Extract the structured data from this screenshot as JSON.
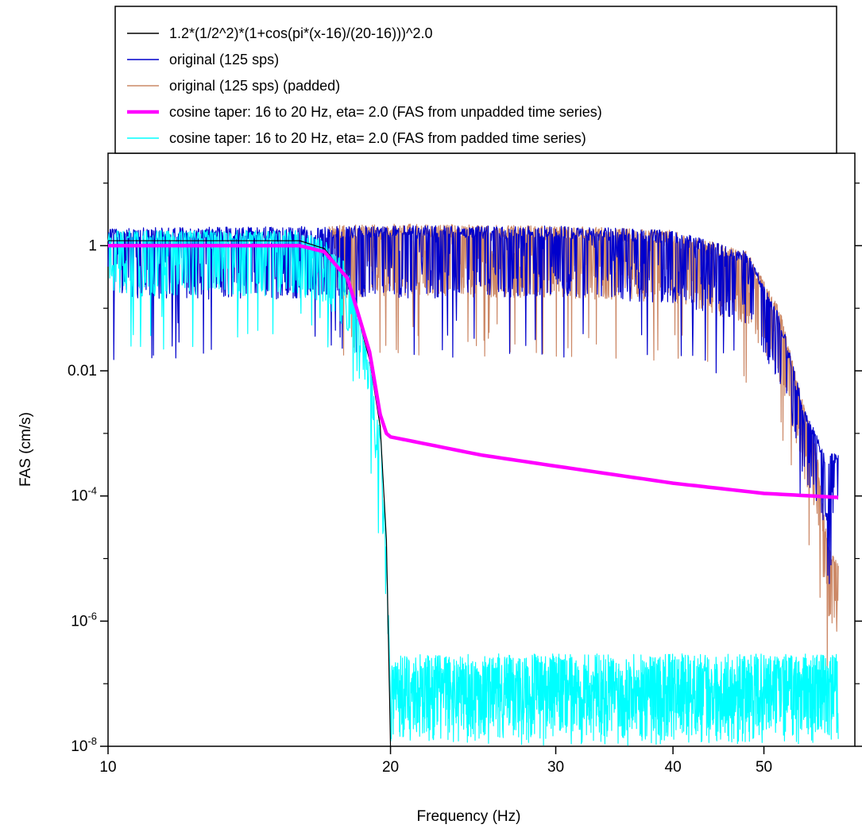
{
  "chart_data": {
    "type": "line",
    "title": "",
    "xlabel": "Frequency (Hz)",
    "ylabel": "FAS (cm/s)",
    "xscale": "log",
    "yscale": "log",
    "xlim": [
      10,
      62.5
    ],
    "ylim": [
      1e-08,
      30
    ],
    "grid": false,
    "legend_position": "top",
    "x_ticks": [
      {
        "value": 10,
        "label": "10"
      },
      {
        "value": 20,
        "label": "20"
      },
      {
        "value": 30,
        "label": "30"
      },
      {
        "value": 40,
        "label": "40"
      },
      {
        "value": 50,
        "label": "50"
      }
    ],
    "y_ticks": [
      {
        "value": 1,
        "base": "1",
        "exp": ""
      },
      {
        "value": 0.01,
        "base": "0.01",
        "exp": ""
      },
      {
        "value": 0.0001,
        "base": "10",
        "exp": "-4"
      },
      {
        "value": 1e-06,
        "base": "10",
        "exp": "-6"
      },
      {
        "value": 1e-08,
        "base": "10",
        "exp": "-8"
      }
    ],
    "series": [
      {
        "name": "1.2*(1/2^2)*(1+cos(pi*(x-16)/(20-16)))^2.0",
        "color": "#000000",
        "style": "line",
        "points": [
          [
            10,
            1.2
          ],
          [
            16,
            1.2
          ],
          [
            17,
            0.9
          ],
          [
            18,
            0.3
          ],
          [
            19,
            0.015
          ],
          [
            19.5,
            0.0013
          ],
          [
            19.8,
            2e-05
          ],
          [
            20,
            1e-08
          ]
        ]
      },
      {
        "name": "original (125 sps)",
        "color": "#0000cc",
        "style": "noisy",
        "envelope": [
          [
            10,
            1.2
          ],
          [
            20,
            1.3
          ],
          [
            30,
            1.3
          ],
          [
            40,
            1.1
          ],
          [
            48,
            0.5
          ],
          [
            52,
            0.05
          ],
          [
            55,
            0.002
          ],
          [
            58,
            0.0003
          ],
          [
            60,
            0.0003
          ]
        ],
        "spread": [
          1.6,
          8
        ]
      },
      {
        "name": "original (125 sps) (padded)",
        "color": "#cc8866",
        "style": "noisy",
        "envelope": [
          [
            17.2,
            1.3
          ],
          [
            20,
            1.4
          ],
          [
            30,
            1.3
          ],
          [
            40,
            1.1
          ],
          [
            48,
            0.5
          ],
          [
            52,
            0.06
          ],
          [
            55,
            0.002
          ],
          [
            57,
            0.0003
          ],
          [
            58.5,
            1e-05
          ],
          [
            60,
            5e-06
          ]
        ],
        "spread": [
          1.6,
          8
        ]
      },
      {
        "name": "cosine taper: 16 to 20 Hz, eta= 2.0 (FAS from unpadded time series)",
        "color": "#ff00ff",
        "style": "thick",
        "points": [
          [
            10,
            1.0
          ],
          [
            16,
            1.0
          ],
          [
            17,
            0.8
          ],
          [
            18,
            0.3
          ],
          [
            19,
            0.02
          ],
          [
            19.5,
            0.002
          ],
          [
            19.8,
            0.001
          ],
          [
            20,
            0.00088
          ],
          [
            25,
            0.00045
          ],
          [
            30,
            0.0003
          ],
          [
            40,
            0.00016
          ],
          [
            50,
            0.00011
          ],
          [
            60,
            9.5e-05
          ]
        ]
      },
      {
        "name": "cosine taper: 16 to 20 Hz, eta= 2.0 (FAS from padded time series)",
        "color": "#00ffff",
        "style": "noisy-cutoff",
        "envelope": [
          [
            10,
            1.1
          ],
          [
            16,
            1.1
          ],
          [
            17,
            0.8
          ],
          [
            18,
            0.3
          ],
          [
            19,
            0.01
          ],
          [
            19.5,
            0.0008
          ],
          [
            19.8,
            1e-05
          ],
          [
            20,
            1e-07
          ],
          [
            60,
            1e-07
          ]
        ],
        "floor_range": [
          1e-08,
          3e-07
        ]
      }
    ]
  }
}
